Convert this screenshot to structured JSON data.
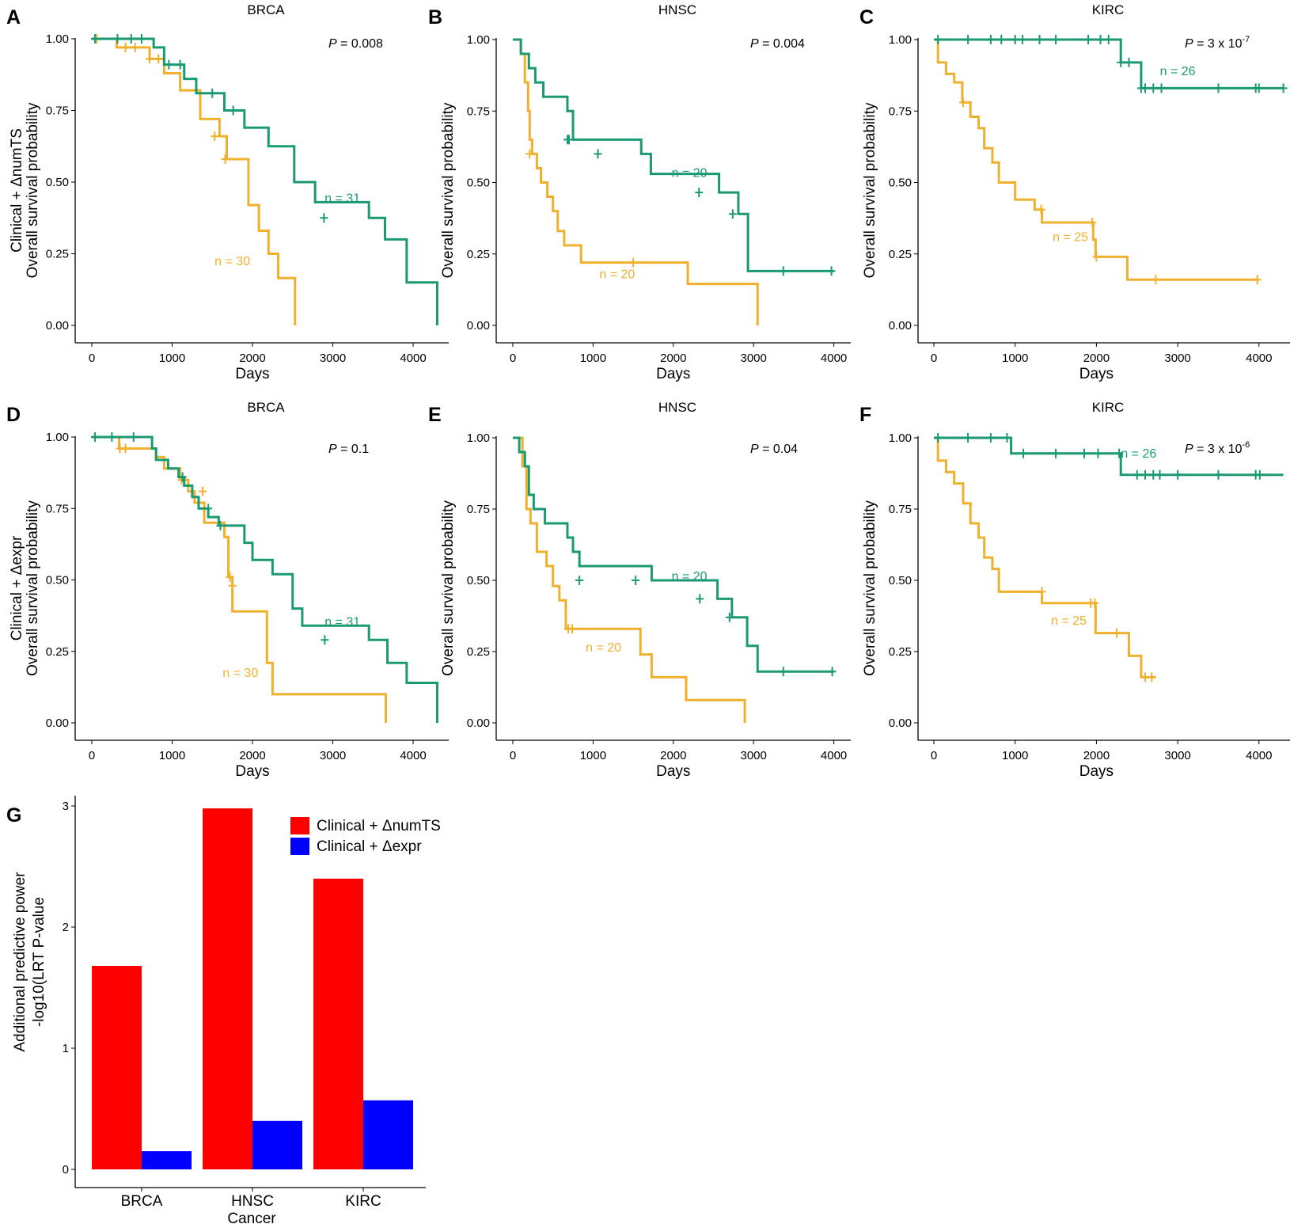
{
  "colors": {
    "high": "#1a9a73",
    "low": "#f0b02c",
    "numTS": "#ff0000",
    "expr": "#0000ff",
    "axis": "#000000"
  },
  "chart_data": [
    {
      "type": "line",
      "panel": "A",
      "title": "BRCA",
      "ylabel": [
        "Clinical + ΔnumTS",
        "Overall survival probability"
      ],
      "xlabel": "Days",
      "xlim": [
        0,
        4300
      ],
      "ylim": [
        0,
        1
      ],
      "xticks": [
        "0",
        "1000",
        "2000",
        "3000",
        "4000"
      ],
      "yticks": [
        "0.00",
        "0.25",
        "0.50",
        "0.75",
        "1.00"
      ],
      "p_label": "P",
      "p_value": " = 0.008",
      "p_exp": "",
      "series": [
        {
          "name": "n = 31",
          "color": "high",
          "x": [
            0,
            770,
            900,
            1150,
            1300,
            1650,
            1900,
            2200,
            2520,
            2780,
            3450,
            3650,
            3920,
            4300
          ],
          "y": [
            1.0,
            0.97,
            0.91,
            0.86,
            0.81,
            0.75,
            0.69,
            0.625,
            0.5,
            0.43,
            0.375,
            0.3,
            0.15,
            0.075
          ],
          "censor_x": [
            40,
            320,
            490,
            620,
            960,
            1100,
            1500,
            1760,
            2890
          ],
          "censor_y": [
            1.0,
            1.0,
            1.0,
            1.0,
            0.91,
            0.91,
            0.81,
            0.75,
            0.375
          ],
          "end_x": 4300,
          "end_y": 0.0
        },
        {
          "name": "n = 30",
          "color": "low",
          "x": [
            0,
            310,
            720,
            900,
            1100,
            1350,
            1590,
            1680,
            1950,
            2080,
            2200,
            2320,
            2530
          ],
          "y": [
            1.0,
            0.97,
            0.93,
            0.88,
            0.82,
            0.72,
            0.66,
            0.58,
            0.42,
            0.33,
            0.25,
            0.165,
            0.082
          ],
          "censor_x": [
            60,
            420,
            540,
            720,
            830,
            1530,
            1660
          ],
          "censor_y": [
            1.0,
            0.97,
            0.97,
            0.93,
            0.93,
            0.66,
            0.58
          ],
          "end_x": 2530,
          "end_y": 0.0
        }
      ],
      "n_labels": [
        {
          "text": "n = 31",
          "color": "high",
          "x": 3120,
          "y": 0.43
        },
        {
          "text": "n = 30",
          "color": "low",
          "x": 1750,
          "y": 0.21
        }
      ]
    },
    {
      "type": "line",
      "panel": "B",
      "title": "HNSC",
      "ylabel": [
        "",
        "Overall survival probability"
      ],
      "xlabel": "Days",
      "xlim": [
        0,
        4100
      ],
      "ylim": [
        0,
        1
      ],
      "xticks": [
        "0",
        "1000",
        "2000",
        "3000",
        "4000"
      ],
      "yticks": [
        "0.00",
        "0.25",
        "0.50",
        "0.75",
        "1.00"
      ],
      "p_label": "P",
      "p_value": " = 0.004",
      "p_exp": "",
      "series": [
        {
          "name": "n = 20",
          "color": "high",
          "x": [
            0,
            100,
            200,
            280,
            380,
            680,
            750,
            1600,
            1720,
            2570,
            2810,
            2930
          ],
          "y": [
            1.0,
            0.95,
            0.9,
            0.85,
            0.8,
            0.75,
            0.65,
            0.6,
            0.53,
            0.465,
            0.39,
            0.19
          ],
          "censor_x": [
            680,
            700,
            1060,
            2320,
            2740,
            3370,
            3970
          ],
          "censor_y": [
            0.65,
            0.65,
            0.6,
            0.465,
            0.39,
            0.19,
            0.19
          ],
          "end_x": 4000,
          "end_y": 0.19
        },
        {
          "name": "n = 20",
          "color": "low",
          "x": [
            0,
            100,
            150,
            190,
            210,
            240,
            300,
            350,
            430,
            500,
            560,
            640,
            850,
            1730,
            2180,
            3050
          ],
          "y": [
            1.0,
            0.95,
            0.85,
            0.75,
            0.65,
            0.6,
            0.55,
            0.5,
            0.45,
            0.4,
            0.33,
            0.28,
            0.22,
            0.22,
            0.145,
            0.072
          ],
          "censor_x": [
            210,
            1500
          ],
          "censor_y": [
            0.6,
            0.22
          ],
          "end_x": 3050,
          "end_y": 0.0
        }
      ],
      "n_labels": [
        {
          "text": "n = 20",
          "color": "high",
          "x": 2200,
          "y": 0.52
        },
        {
          "text": "n = 20",
          "color": "low",
          "x": 1300,
          "y": 0.165
        }
      ]
    },
    {
      "type": "line",
      "panel": "C",
      "title": "KIRC",
      "ylabel": [
        "",
        "Overall survival probability"
      ],
      "xlabel": "Days",
      "xlim": [
        0,
        4300
      ],
      "ylim": [
        0,
        1
      ],
      "xticks": [
        "0",
        "1000",
        "2000",
        "3000",
        "4000"
      ],
      "yticks": [
        "0.00",
        "0.25",
        "0.50",
        "0.75",
        "1.00"
      ],
      "p_label": "P",
      "p_value": " = 3 x 10",
      "p_exp": "-7",
      "series": [
        {
          "name": "n = 26",
          "color": "high",
          "x": [
            0,
            2300,
            2550
          ],
          "y": [
            1.0,
            0.92,
            0.83
          ],
          "censor_x": [
            50,
            420,
            700,
            830,
            1000,
            1090,
            1300,
            1500,
            1900,
            2050,
            2150,
            2300,
            2400,
            2550,
            2600,
            2700,
            2800,
            3500,
            3960,
            4000,
            4300
          ],
          "censor_y": [
            1.0,
            1.0,
            1.0,
            1.0,
            1.0,
            1.0,
            1.0,
            1.0,
            1.0,
            1.0,
            1.0,
            0.92,
            0.92,
            0.83,
            0.83,
            0.83,
            0.83,
            0.83,
            0.83,
            0.83,
            0.83
          ],
          "end_x": 4300,
          "end_y": 0.83
        },
        {
          "name": "n = 25",
          "color": "low",
          "x": [
            0,
            50,
            150,
            250,
            350,
            450,
            550,
            620,
            720,
            800,
            1000,
            1240,
            1330,
            1960,
            1990,
            2380
          ],
          "y": [
            1.0,
            0.92,
            0.88,
            0.85,
            0.78,
            0.73,
            0.69,
            0.62,
            0.57,
            0.5,
            0.44,
            0.405,
            0.36,
            0.3,
            0.24,
            0.16
          ],
          "censor_x": [
            360,
            1320,
            1950,
            2000,
            2730,
            3980
          ],
          "censor_y": [
            0.78,
            0.405,
            0.36,
            0.24,
            0.16,
            0.16
          ],
          "end_x": 3980,
          "end_y": 0.16
        }
      ],
      "n_labels": [
        {
          "text": "n = 26",
          "color": "high",
          "x": 3000,
          "y": 0.875
        },
        {
          "text": "n = 25",
          "color": "low",
          "x": 1680,
          "y": 0.295
        }
      ]
    },
    {
      "type": "line",
      "panel": "D",
      "title": "BRCA",
      "ylabel": [
        "Clinical + Δexpr",
        "Overall survival probability"
      ],
      "xlabel": "Days",
      "xlim": [
        0,
        4300
      ],
      "ylim": [
        0,
        1
      ],
      "xticks": [
        "0",
        "1000",
        "2000",
        "3000",
        "4000"
      ],
      "yticks": [
        "0.00",
        "0.25",
        "0.50",
        "0.75",
        "1.00"
      ],
      "p_label": "P",
      "p_value": " = 0.1",
      "p_exp": "",
      "series": [
        {
          "name": "n = 31",
          "color": "high",
          "x": [
            0,
            750,
            800,
            950,
            1080,
            1150,
            1250,
            1330,
            1450,
            1580,
            1900,
            2000,
            2250,
            2500,
            2620,
            3450,
            3680,
            3920,
            4300
          ],
          "y": [
            1.0,
            0.96,
            0.92,
            0.89,
            0.86,
            0.83,
            0.79,
            0.75,
            0.72,
            0.69,
            0.63,
            0.57,
            0.52,
            0.4,
            0.34,
            0.29,
            0.21,
            0.14,
            0.07
          ],
          "censor_x": [
            40,
            250,
            520,
            1130,
            1450,
            1600,
            2900
          ],
          "censor_y": [
            1.0,
            1.0,
            1.0,
            0.86,
            0.75,
            0.69,
            0.29
          ],
          "end_x": 4300,
          "end_y": 0.0
        },
        {
          "name": "n = 30",
          "color": "low",
          "x": [
            0,
            340,
            800,
            900,
            1100,
            1200,
            1280,
            1400,
            1650,
            1700,
            1750,
            2180,
            2250,
            3660
          ],
          "y": [
            1.0,
            0.96,
            0.93,
            0.89,
            0.85,
            0.81,
            0.77,
            0.7,
            0.65,
            0.51,
            0.39,
            0.21,
            0.1,
            0.0
          ],
          "censor_x": [
            350,
            420,
            1120,
            1380,
            1720,
            1750
          ],
          "censor_y": [
            0.96,
            0.96,
            0.85,
            0.81,
            0.51,
            0.48
          ],
          "end_x": 3660,
          "end_y": 0.0
        }
      ],
      "n_labels": [
        {
          "text": "n = 31",
          "color": "high",
          "x": 3120,
          "y": 0.34
        },
        {
          "text": "n = 30",
          "color": "low",
          "x": 1850,
          "y": 0.16
        }
      ]
    },
    {
      "type": "line",
      "panel": "E",
      "title": "HNSC",
      "ylabel": [
        "",
        "Overall survival probability"
      ],
      "xlabel": "Days",
      "xlim": [
        0,
        4100
      ],
      "ylim": [
        0,
        1
      ],
      "xticks": [
        "0",
        "1000",
        "2000",
        "3000",
        "4000"
      ],
      "yticks": [
        "0.00",
        "0.25",
        "0.50",
        "0.75",
        "1.00"
      ],
      "p_label": "P",
      "p_value": " = 0.04",
      "p_exp": "",
      "series": [
        {
          "name": "n = 20",
          "color": "high",
          "x": [
            0,
            80,
            150,
            200,
            260,
            400,
            680,
            750,
            830,
            1730,
            2550,
            2730,
            2920,
            3050
          ],
          "y": [
            1.0,
            0.95,
            0.9,
            0.8,
            0.75,
            0.7,
            0.65,
            0.6,
            0.55,
            0.5,
            0.435,
            0.37,
            0.27,
            0.18
          ],
          "censor_x": [
            830,
            1530,
            2330,
            2700,
            3370,
            3980
          ],
          "censor_y": [
            0.5,
            0.5,
            0.435,
            0.37,
            0.18,
            0.18
          ],
          "end_x": 4000,
          "end_y": 0.18
        },
        {
          "name": "n = 20",
          "color": "low",
          "x": [
            0,
            120,
            170,
            220,
            300,
            420,
            500,
            580,
            660,
            1590,
            1730,
            2160,
            2890
          ],
          "y": [
            1.0,
            0.9,
            0.75,
            0.7,
            0.6,
            0.55,
            0.48,
            0.43,
            0.33,
            0.24,
            0.16,
            0.08,
            0.0
          ],
          "censor_x": [
            690,
            740
          ],
          "censor_y": [
            0.33,
            0.33
          ],
          "end_x": 2890,
          "end_y": 0.0
        }
      ],
      "n_labels": [
        {
          "text": "n = 20",
          "color": "high",
          "x": 2200,
          "y": 0.5
        },
        {
          "text": "n = 20",
          "color": "low",
          "x": 1130,
          "y": 0.25
        }
      ]
    },
    {
      "type": "line",
      "panel": "F",
      "title": "KIRC",
      "ylabel": [
        "",
        "Overall survival probability"
      ],
      "xlabel": "Days",
      "xlim": [
        0,
        4300
      ],
      "ylim": [
        0,
        1
      ],
      "xticks": [
        "0",
        "1000",
        "2000",
        "3000",
        "4000"
      ],
      "yticks": [
        "0.00",
        "0.25",
        "0.50",
        "0.75",
        "1.00"
      ],
      "p_label": "P",
      "p_value": " = 3 x 10",
      "p_exp": "-6",
      "series": [
        {
          "name": "n = 26",
          "color": "high",
          "x": [
            0,
            950,
            2300
          ],
          "y": [
            1.0,
            0.945,
            0.87
          ],
          "censor_x": [
            50,
            420,
            700,
            900,
            1100,
            1500,
            1850,
            2020,
            2280,
            2500,
            2600,
            2700,
            2780,
            3000,
            3500,
            3960,
            4010
          ],
          "censor_y": [
            1.0,
            1.0,
            1.0,
            1.0,
            0.945,
            0.945,
            0.945,
            0.945,
            0.945,
            0.87,
            0.87,
            0.87,
            0.87,
            0.87,
            0.87,
            0.87,
            0.87
          ],
          "end_x": 4300,
          "end_y": 0.87
        },
        {
          "name": "n = 25",
          "color": "low",
          "x": [
            0,
            50,
            150,
            250,
            360,
            450,
            550,
            620,
            720,
            800,
            1330,
            1900,
            1990,
            2400,
            2550
          ],
          "y": [
            1.0,
            0.92,
            0.88,
            0.84,
            0.77,
            0.7,
            0.65,
            0.58,
            0.54,
            0.46,
            0.42,
            0.42,
            0.315,
            0.235,
            0.16
          ],
          "censor_x": [
            1330,
            1930,
            1980,
            2250,
            2600,
            2680
          ],
          "censor_y": [
            0.46,
            0.42,
            0.42,
            0.315,
            0.16,
            0.16
          ],
          "end_x": 2730,
          "end_y": 0.16
        }
      ],
      "n_labels": [
        {
          "text": "n = 26",
          "color": "high",
          "x": 2520,
          "y": 0.93
        },
        {
          "text": "n = 25",
          "color": "low",
          "x": 1660,
          "y": 0.345
        }
      ]
    },
    {
      "type": "bar",
      "panel": "G",
      "ylabel": [
        "Additional predictive power",
        "-log10(LRT P-value"
      ],
      "xlabel": "Cancer",
      "ylim": [
        0,
        3.1
      ],
      "yticks": [
        "0",
        "1",
        "2",
        "3"
      ],
      "categories": [
        "BRCA",
        "HNSC",
        "KIRC"
      ],
      "series": [
        {
          "name": "Clinical + ΔnumTS",
          "color": "numTS",
          "values": [
            1.68,
            2.98,
            2.4
          ]
        },
        {
          "name": "Clinical + Δexpr",
          "color": "expr",
          "values": [
            0.15,
            0.4,
            0.57
          ]
        }
      ]
    }
  ]
}
